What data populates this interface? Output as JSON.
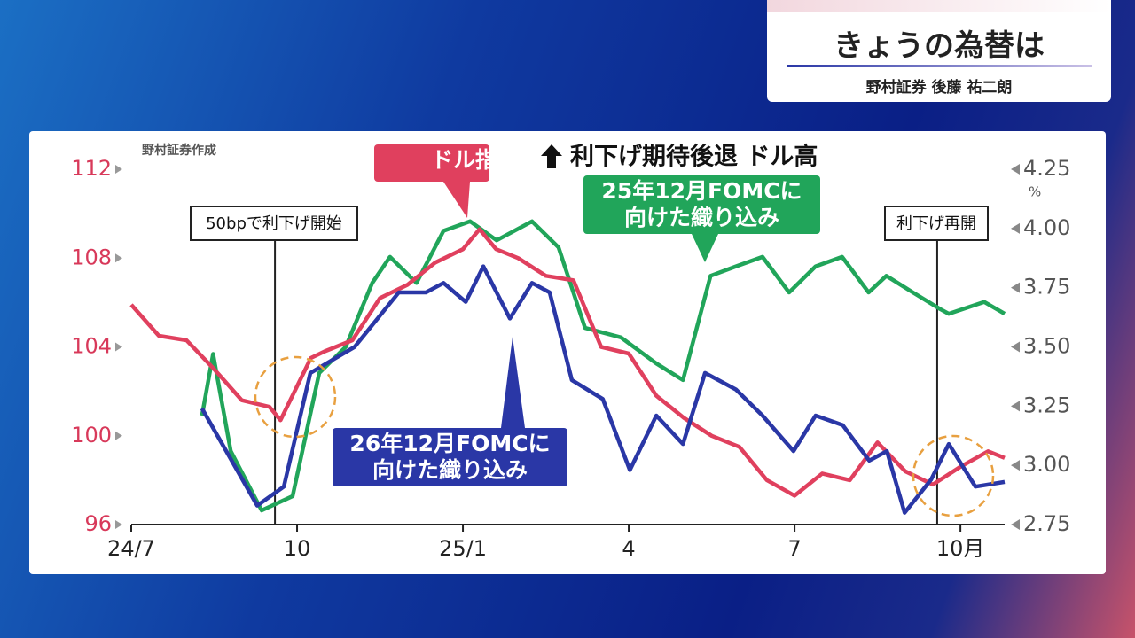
{
  "header": {
    "title": "きょうの為替は",
    "subtitle": "野村証券 後藤 祐二朗"
  },
  "chart_data": {
    "type": "line",
    "title": "利下げ期待後退 ドル高",
    "source": "野村証券作成",
    "y2_unit": "%",
    "xlim": [
      0,
      15.8
    ],
    "xticks": [
      {
        "value": 0,
        "label": "24/7"
      },
      {
        "value": 3,
        "label": "10"
      },
      {
        "value": 6,
        "label": "25/1"
      },
      {
        "value": 9,
        "label": "4"
      },
      {
        "value": 12,
        "label": "7"
      },
      {
        "value": 15,
        "label": "10月"
      }
    ],
    "ylim": [
      96,
      112
    ],
    "yticks": [
      96,
      100,
      104,
      108,
      112
    ],
    "y2lim": [
      2.75,
      4.25
    ],
    "y2ticks": [
      2.75,
      {
        "value": 3,
        "label": "3.00"
      },
      3.25,
      {
        "value": 3.5,
        "label": "3.50"
      },
      3.75,
      {
        "value": 4,
        "label": "4.00"
      },
      4.25
    ],
    "annotations": [
      {
        "text": "50bpで利下げ開始",
        "x": 2.6
      },
      {
        "text": "利下げ再開",
        "x": 14.58
      }
    ],
    "series": [
      {
        "name": "25年12月FOMCに向けた織り込み",
        "color": "#21a55a",
        "axis": "y2",
        "x": [
          1.28,
          1.48,
          1.8,
          2.36,
          2.92,
          3.4,
          3.88,
          4.36,
          4.68,
          5.16,
          5.65,
          6.13,
          6.61,
          7.25,
          7.73,
          8.21,
          8.86,
          9.5,
          9.98,
          10.48,
          10.94,
          11.42,
          11.9,
          12.38,
          12.86,
          13.34,
          13.66,
          14.14,
          14.63,
          14.79,
          15.43,
          15.8
        ],
        "values": [
          3.21,
          3.47,
          3.06,
          2.81,
          2.87,
          3.39,
          3.5,
          3.77,
          3.88,
          3.77,
          3.99,
          4.03,
          3.95,
          4.03,
          3.92,
          3.58,
          3.54,
          3.43,
          3.36,
          3.8,
          3.84,
          3.88,
          3.73,
          3.84,
          3.88,
          3.73,
          3.8,
          3.73,
          3.66,
          3.64,
          3.69,
          3.64
        ]
      },
      {
        "name": "ドル指数",
        "color": "#e0405e",
        "axis": "y",
        "x": [
          0,
          0.5,
          1,
          1.5,
          2,
          2.5,
          2.7,
          3.25,
          3.5,
          4,
          4.5,
          5,
          5.5,
          6,
          6.3,
          6.6,
          7,
          7.5,
          8,
          8.5,
          9,
          9.5,
          10,
          10.5,
          11,
          11.5,
          12,
          12.5,
          13,
          13.5,
          14,
          14.5,
          15,
          15.5,
          15.8
        ],
        "values": [
          105.9,
          104.5,
          104.3,
          103.0,
          101.6,
          101.3,
          100.7,
          103.5,
          103.8,
          104.3,
          106.2,
          106.8,
          107.8,
          108.4,
          109.3,
          108.4,
          108.0,
          107.2,
          107.0,
          104.0,
          103.7,
          101.8,
          100.8,
          100.0,
          99.5,
          98.0,
          97.3,
          98.3,
          98.0,
          99.7,
          98.4,
          97.8,
          98.6,
          99.3,
          99.0
        ]
      },
      {
        "name": "26年12月FOMCに向けた織り込み",
        "color": "#2a37a6",
        "axis": "y2",
        "x": [
          1.28,
          2.28,
          2.76,
          3.24,
          4.04,
          4.84,
          5.33,
          5.65,
          6.05,
          6.37,
          6.85,
          7.25,
          7.57,
          7.97,
          8.53,
          9.02,
          9.5,
          9.98,
          10.38,
          10.94,
          11.42,
          11.98,
          12.38,
          12.87,
          13.35,
          13.67,
          13.99,
          14.47,
          14.79,
          15.27,
          15.8
        ],
        "values": [
          3.24,
          2.83,
          2.91,
          3.39,
          3.5,
          3.73,
          3.73,
          3.77,
          3.69,
          3.84,
          3.62,
          3.77,
          3.73,
          3.36,
          3.28,
          2.98,
          3.21,
          3.09,
          3.39,
          3.32,
          3.21,
          3.06,
          3.21,
          3.17,
          3.02,
          3.06,
          2.8,
          2.94,
          3.09,
          2.91,
          2.93
        ]
      }
    ]
  }
}
